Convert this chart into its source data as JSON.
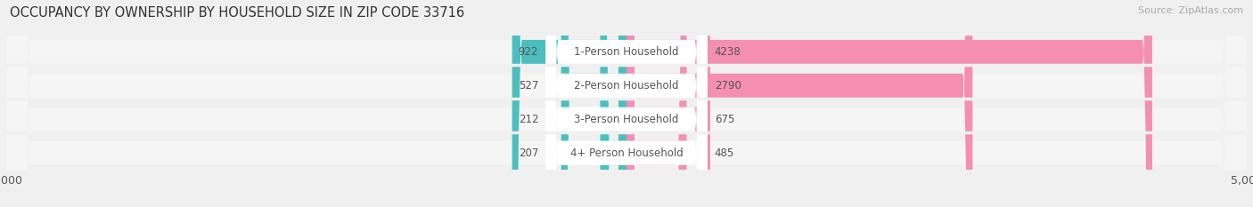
{
  "title": "OCCUPANCY BY OWNERSHIP BY HOUSEHOLD SIZE IN ZIP CODE 33716",
  "source": "Source: ZipAtlas.com",
  "categories": [
    "1-Person Household",
    "2-Person Household",
    "3-Person Household",
    "4+ Person Household"
  ],
  "owner_values": [
    922,
    527,
    212,
    207
  ],
  "renter_values": [
    4238,
    2790,
    675,
    485
  ],
  "owner_color": "#4BBFBF",
  "renter_color": "#F48FB1",
  "max_val": 5000,
  "bg_color": "#f0f0f0",
  "bar_bg_color": "#e8e8e8",
  "row_bg_color": "#f5f5f5",
  "title_fontsize": 10.5,
  "source_fontsize": 8,
  "label_fontsize": 8.5,
  "tick_fontsize": 9,
  "legend_fontsize": 9,
  "value_fontsize": 8.5
}
